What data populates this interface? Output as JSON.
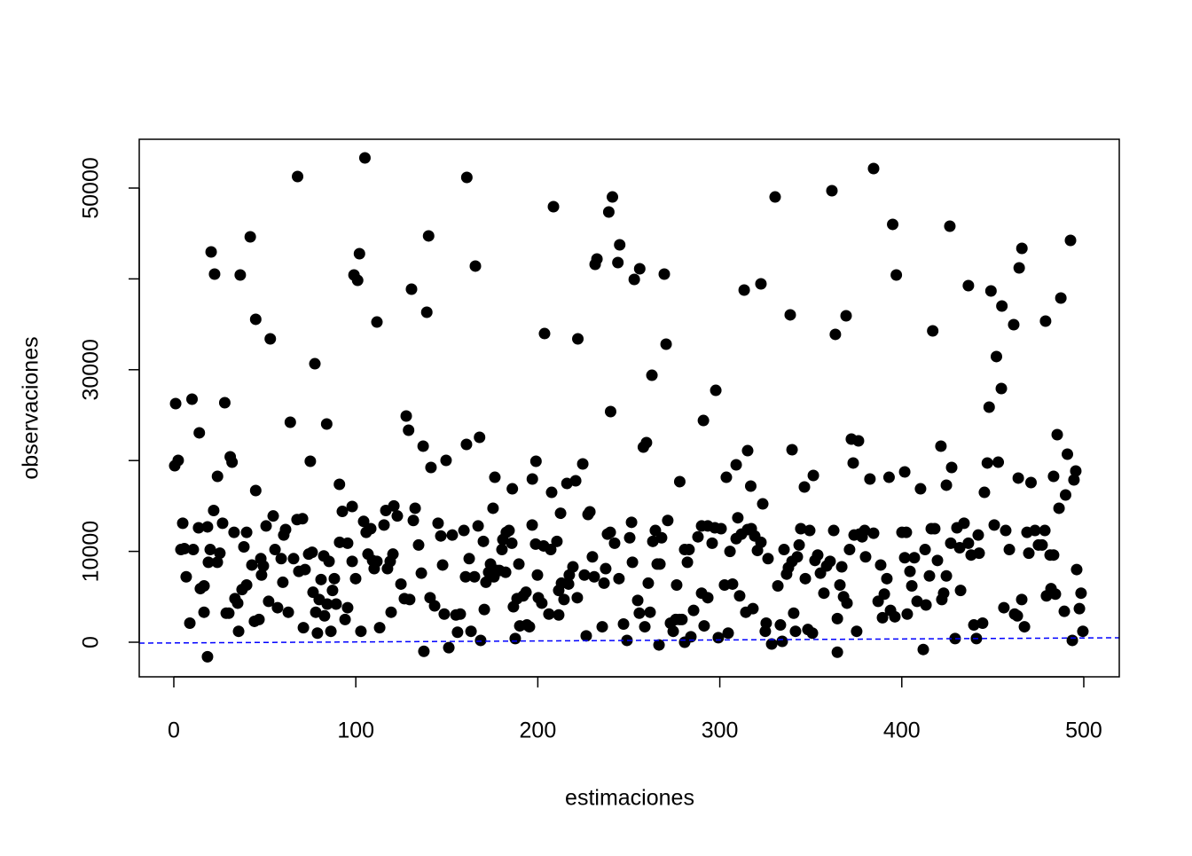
{
  "chart_data": {
    "type": "scatter",
    "xlabel": "estimaciones",
    "ylabel": "observaciones",
    "color": "#000000",
    "xlim": [
      -19,
      519.5
    ],
    "ylim": [
      -3809,
      55371
    ],
    "xticks": [
      0,
      100,
      200,
      300,
      400,
      500
    ],
    "yticks": [
      0,
      10000,
      {
        "value": 20000,
        "label": null
      },
      30000,
      {
        "value": 40000,
        "label": null
      },
      50000
    ],
    "reference_line": {
      "x": [
        -19,
        519.5
      ],
      "y": [
        -100,
        490
      ],
      "color": "#0000ff",
      "style": "dashed"
    },
    "x": [
      1,
      2.4,
      0.5,
      10,
      14,
      20.5,
      22.4,
      24,
      28,
      31,
      32,
      36.5,
      42,
      45,
      45,
      53,
      64,
      68,
      75,
      77.5,
      84,
      91,
      98,
      99,
      101,
      102,
      105,
      111.6,
      127.7,
      129,
      130.6,
      132.6,
      137,
      139,
      140,
      141.3,
      149.6,
      160.8,
      161,
      165.7,
      168,
      176.4,
      175.4,
      186,
      197,
      199,
      203.7,
      207.6,
      208.6,
      216,
      220.8,
      222,
      224.7,
      227.6,
      228.6,
      231.5,
      232.5,
      239,
      240,
      241,
      244,
      245,
      253,
      256,
      258,
      259.7,
      262.7,
      269.5,
      270.5,
      278,
      291,
      297.8,
      303.6,
      309,
      313.4,
      315.3,
      317,
      322.6,
      323.6,
      330.4,
      338.7,
      339.7,
      346.5,
      351.4,
      361.6,
      363.5,
      369.4,
      372.3,
      373.3,
      376.2,
      382.5,
      384.5,
      393,
      395,
      397,
      401.6,
      410.3,
      417,
      421.5,
      424.5,
      426.4,
      427.4,
      436.6,
      445.4,
      447,
      448,
      449,
      452,
      453,
      454.7,
      455,
      461.5,
      464,
      464.5,
      466,
      471,
      479,
      483.4,
      485.4,
      486.4,
      487.4,
      490,
      491,
      492.7,
      494.6,
      495.6,
      4.9,
      3.9,
      5.8,
      6.8,
      8.8,
      10.7,
      13.6,
      14.6,
      16.6,
      16.6,
      18.5,
      19.0,
      20.0,
      18.5,
      21.9,
      23.9,
      25.3,
      26.8,
      28.8,
      30.2,
      33.1,
      33.6,
      35.1,
      35.6,
      37.5,
      38.5,
      40.0,
      40.0,
      42.9,
      44.3,
      46.8,
      47.8,
      48.2,
      49.2,
      50.7,
      52.1,
      54.6,
      55.6,
      57.0,
      59.0,
      59.9,
      60.4,
      61.4,
      62.9,
      65.8,
      67.7,
      68.7,
      70.7,
      71.2,
      72.1,
      74.1,
      76.0,
      76.5,
      78.0,
      78.9,
      79.9,
      80.9,
      82.4,
      82.8,
      84.3,
      85.3,
      86.3,
      87.2,
      88.2,
      89.2,
      91.1,
      92.6,
      94.1,
      95.5,
      95.5,
      98.0,
      99.9,
      102.8,
      104.3,
      105.7,
      106.7,
      108.2,
      109.2,
      110.1,
      111.6,
      113.1,
      115.5,
      116.5,
      117.4,
      118.9,
      119.4,
      120.4,
      120.9,
      122.8,
      124.8,
      126.7,
      129.6,
      131.6,
      134.5,
      136.0,
      137.4,
      140.8,
      143.3,
      145.2,
      146.7,
      147.7,
      148.6,
      151.1,
      153.0,
      155.0,
      155.9,
      157.4,
      159.4,
      160.3,
      162.3,
      163.3,
      165.2,
      167.2,
      168.6,
      170.1,
      170.6,
      171.5,
      173.0,
      174.0,
      175.0,
      175.9,
      177.4,
      178.9,
      180.3,
      180.8,
      182.3,
      182.7,
      184.2,
      185.7,
      186.6,
      187.6,
      188.6,
      189.6,
      190.1,
      192.0,
      193.5,
      194.0,
      195.4,
      196.9,
      198.8,
      199.8,
      200.3,
      202.2,
      203.2,
      206.1,
      207.1,
      210.5,
      211.5,
      211.5,
      212.5,
      213.0,
      214.4,
      216.9,
      217.3,
      219.3,
      221.7,
      225.6,
      226.6,
      230.0,
      231.0,
      235.4,
      236.4,
      237.3,
      238.3,
      239.8,
      242.2,
      244.6,
      247.1,
      249.0,
      250.5,
      251.5,
      252.0,
      254.9,
      255.8,
      258.8,
      260.7,
      261.7,
      263.2,
      264.6,
      265.6,
      266.6,
      267.1,
      268.0,
      271.4,
      272.9,
      274.4,
      275.8,
      276.3,
      277.8,
      279.2,
      280.7,
      280.7,
      282.2,
      283.1,
      284.1,
      285.6,
      288.0,
      290.0,
      290.0,
      291.4,
      293.4,
      293.4,
      295.8,
      297.3,
      299.2,
      300.7,
      302.6,
      304.6,
      305.6,
      307.0,
      309.0,
      309.9,
      310.9,
      311.9,
      314.3,
      315.3,
      317.3,
      318.2,
      319.2,
      320.7,
      322.6,
      325.0,
      325.5,
      326.5,
      328.5,
      331.9,
      333.3,
      334.3,
      335.3,
      336.7,
      337.7,
      339.7,
      340.6,
      341.6,
      342.6,
      343.6,
      344.5,
      347.0,
      348.4,
      349.4,
      350.9,
      352.3,
      353.8,
      355.3,
      357.2,
      358.7,
      360.6,
      362.6,
      364.6,
      364.6,
      366.0,
      367.0,
      368.0,
      369.9,
      371.3,
      375.2,
      373.8,
      376.7,
      378.2,
      379.6,
      380.1,
      384.5,
      387.0,
      388.4,
      389.4,
      390.4,
      391.8,
      393.8,
      396.2,
      400.1,
      401.6,
      402.5,
      403.0,
      404.5,
      405.5,
      406.9,
      408.4,
      411.8,
      412.8,
      413.3,
      415.2,
      416.2,
      418.1,
      419.6,
      422.0,
      423.0,
      424.5,
      426.9,
      429.3,
      430.3,
      431.8,
      432.3,
      434.2,
      436.6,
      438.1,
      439.6,
      441.0,
      442.0,
      442.5,
      444.4,
      450.8,
      456.1,
      457.1,
      459.1,
      462.0,
      463.5,
      465.9,
      467.4,
      468.8,
      469.8,
      473.2,
      475.1,
      477.1,
      478.6,
      479.5,
      481.5,
      482.0,
      483.4,
      484.4,
      489.3,
      493.7,
      496.1,
      497.6,
      498.5,
      499.5
    ],
    "values": [
      26270,
      20020,
      19430,
      26760,
      23050,
      42970,
      40530,
      18260,
      26370,
      20410,
      19820,
      40430,
      44630,
      35550,
      16700,
      33400,
      24220,
      51270,
      19920,
      30660,
      24020,
      17380,
      14940,
      40430,
      39840,
      42770,
      53320,
      35250,
      24900,
      23340,
      38870,
      14750,
      21580,
      36330,
      44730,
      19240,
      20020,
      21780,
      51170,
      41410,
      22560,
      18160,
      14750,
      16890,
      17970,
      19920,
      33980,
      16500,
      47950,
      17480,
      17770,
      33400,
      19630,
      14060,
      14360,
      41600,
      42190,
      47360,
      25390,
      49020,
      41800,
      43750,
      39940,
      41110,
      21480,
      21970,
      29390,
      40530,
      32810,
      17680,
      24410,
      27730,
      18160,
      19530,
      38770,
      21090,
      17190,
      39450,
      15230,
      49020,
      36040,
      21190,
      17090,
      18360,
      49710,
      33890,
      35940,
      22360,
      19730,
      22170,
      17970,
      52150,
      18160,
      46000,
      40430,
      18750,
      16890,
      34280,
      21580,
      17290,
      45800,
      19240,
      39260,
      16500,
      19730,
      25880,
      38670,
      31450,
      19820,
      27930,
      37010,
      34960,
      18070,
      41210,
      43360,
      17580,
      35350,
      18260,
      22850,
      14750,
      37890,
      16210,
      20700,
      44240,
      17870,
      18850,
      13100,
      10200,
      10300,
      7200,
      2100,
      10200,
      12600,
      5900,
      6200,
      3300,
      12700,
      8800,
      10200,
      -1600,
      14500,
      8800,
      9800,
      13100,
      3200,
      3200,
      12100,
      4800,
      4300,
      1200,
      5800,
      10500,
      12100,
      6300,
      8500,
      2300,
      2500,
      9200,
      7400,
      8400,
      12800,
      4500,
      13900,
      10200,
      3800,
      9200,
      6600,
      11800,
      12400,
      3300,
      9200,
      13500,
      7800,
      13600,
      1600,
      8000,
      9700,
      9900,
      5500,
      3300,
      1000,
      4700,
      6900,
      9500,
      2900,
      4200,
      8900,
      1200,
      5700,
      7000,
      4200,
      11000,
      14400,
      2500,
      3800,
      10900,
      8900,
      7000,
      1200,
      13300,
      12100,
      9700,
      12500,
      9000,
      8100,
      8900,
      1600,
      12900,
      14500,
      8100,
      8900,
      3300,
      9700,
      15000,
      13900,
      6400,
      4800,
      4700,
      13400,
      10700,
      7600,
      -1000,
      4900,
      4000,
      13100,
      11700,
      8500,
      3100,
      -600,
      11800,
      3000,
      1100,
      3100,
      12300,
      7200,
      9200,
      1200,
      7200,
      12800,
      200,
      11100,
      3600,
      6600,
      7700,
      8600,
      8100,
      7200,
      7900,
      7900,
      10200,
      11300,
      7700,
      12100,
      12300,
      10900,
      3900,
      400,
      4800,
      8600,
      1800,
      5100,
      5500,
      1900,
      1700,
      12900,
      10800,
      7400,
      4900,
      4300,
      10600,
      3100,
      10200,
      11100,
      3000,
      5700,
      14200,
      6500,
      4700,
      6400,
      7400,
      8300,
      4900,
      7400,
      700,
      9400,
      7200,
      1700,
      6500,
      8100,
      11900,
      12100,
      10900,
      7000,
      2000,
      200,
      11500,
      13200,
      8800,
      4600,
      3200,
      1700,
      6500,
      3300,
      11100,
      12300,
      8600,
      -300,
      8600,
      11500,
      13400,
      2100,
      1200,
      2500,
      6300,
      2500,
      2500,
      10200,
      0,
      8800,
      10200,
      600,
      3500,
      11600,
      12800,
      5400,
      1800,
      4900,
      12800,
      10900,
      12600,
      500,
      12500,
      6300,
      1000,
      10000,
      6400,
      11400,
      13700,
      5100,
      11900,
      3300,
      12400,
      12500,
      3700,
      11700,
      10100,
      11000,
      1200,
      2100,
      9200,
      -200,
      6200,
      1900,
      100,
      10200,
      7500,
      8200,
      8900,
      3200,
      1200,
      9400,
      10700,
      12500,
      7000,
      1400,
      12300,
      1000,
      9000,
      9600,
      7600,
      5400,
      8400,
      8900,
      12300,
      2600,
      -1100,
      6300,
      8300,
      5000,
      4300,
      10200,
      1200,
      11800,
      11900,
      11600,
      12300,
      9400,
      12000,
      4500,
      8500,
      2700,
      5300,
      7000,
      3500,
      2800,
      12100,
      9300,
      12100,
      3100,
      7800,
      6200,
      9300,
      4500,
      -800,
      10200,
      4100,
      7300,
      12500,
      12500,
      9000,
      4700,
      5400,
      7300,
      10900,
      400,
      12600,
      10400,
      5700,
      13100,
      10900,
      9600,
      1900,
      400,
      11800,
      9800,
      2100,
      12900,
      3800,
      12300,
      10200,
      3100,
      2900,
      4700,
      1700,
      12100,
      9800,
      12300,
      10700,
      10700,
      12300,
      5100,
      9600,
      5900,
      9600,
      5300,
      3400,
      200,
      8000,
      3700,
      5400,
      1200
    ]
  }
}
